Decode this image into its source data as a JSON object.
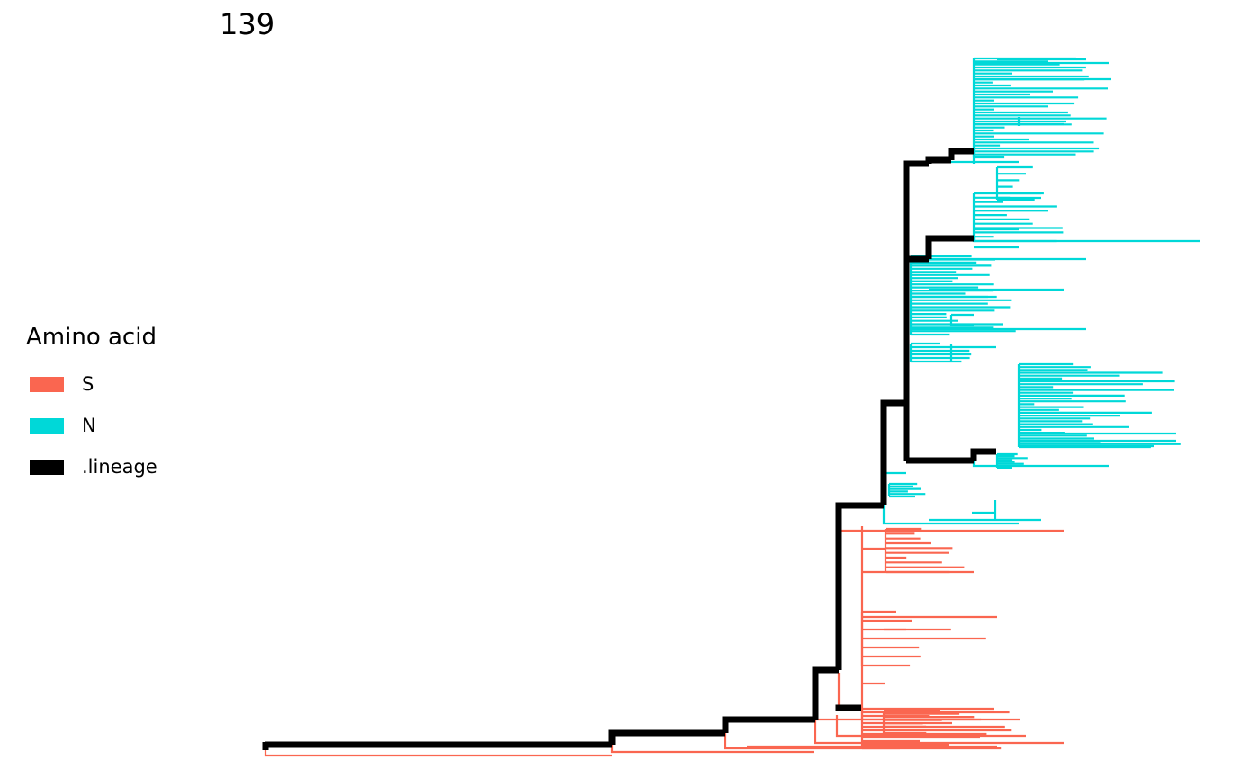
{
  "title": "139",
  "legend": {
    "title": "Amino acid",
    "items": [
      {
        "label": "S",
        "color": "#FA6650"
      },
      {
        "label": "N",
        "color": "#00D8D8"
      },
      {
        "label": ".lineage",
        "color": "#000000"
      }
    ]
  },
  "colors": {
    "S": "#FA6650",
    "N": "#00D8D8",
    "lineage": "#000000"
  }
}
